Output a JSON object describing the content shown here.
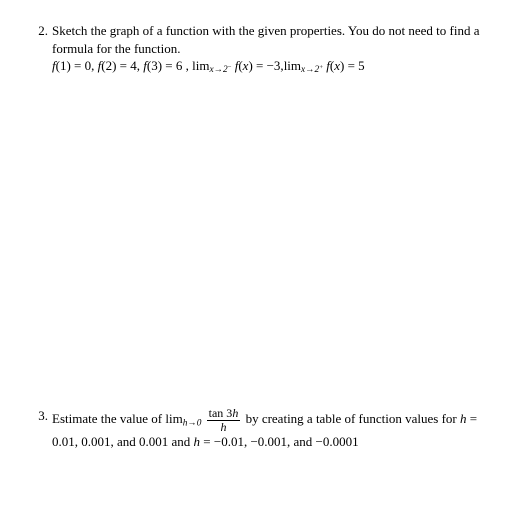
{
  "problem2": {
    "number": "2.",
    "text1": "Sketch the graph of a function with the given properties. You do not need to find a formula for the function.",
    "eq_f1": "f",
    "eq_1_arg": "(1) = 0, ",
    "eq_f2": "f",
    "eq_2_arg": "(2) = 4, ",
    "eq_f3": "f",
    "eq_3_arg": "(3) = 6 , ",
    "lim1_pre": "lim",
    "lim1_sub": "x→2",
    "lim1_supminus": "−",
    "eq_f4": " f",
    "eq_4_arg": "(x) = −3,",
    "lim2_pre": "lim",
    "lim2_sub": "x→2",
    "lim2_supplus": "+",
    "eq_f5": " f",
    "eq_5_arg": "(x) = 5"
  },
  "problem3": {
    "number": "3.",
    "text_pre": "Estimate the value of ",
    "lim_pre": "lim",
    "lim_sub": "h→0",
    "frac_num_a": "tan 3",
    "frac_num_b": "h",
    "frac_den": "h",
    "text_mid": " by creating a table of function values for ",
    "hvar1": "h",
    "text_vals1": " = 0.01, 0.001, and 0.001 and ",
    "hvar2": "h",
    "text_vals2": " = −0.01, −0.001, and −0.0001"
  },
  "colors": {
    "text": "#000000",
    "background": "#ffffff"
  },
  "fontsize_pt": 10
}
